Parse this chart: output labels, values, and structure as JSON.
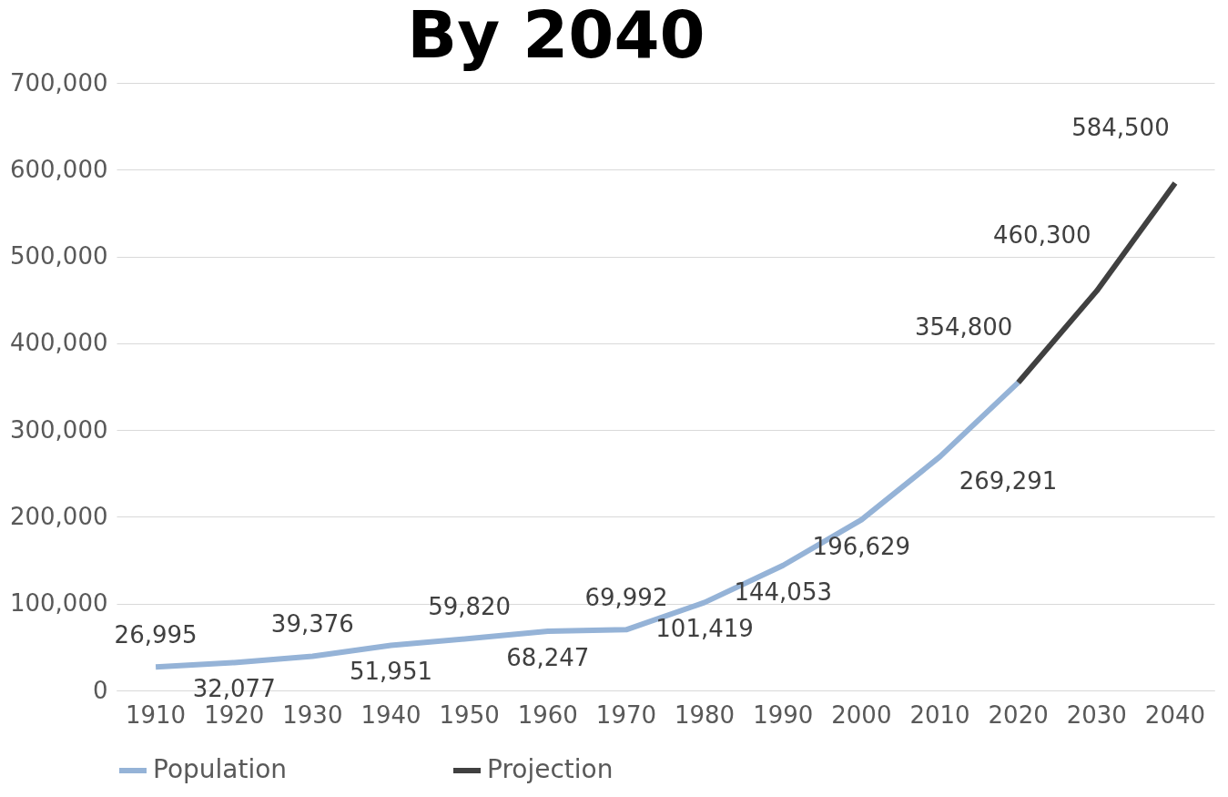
{
  "chart_data": {
    "type": "line",
    "title": "By 2040",
    "categories": [
      "1910",
      "1920",
      "1930",
      "1940",
      "1950",
      "1960",
      "1970",
      "1980",
      "1990",
      "2000",
      "2010",
      "2020",
      "2030",
      "2040"
    ],
    "series": [
      {
        "name": "Population",
        "color": "#95b3d7",
        "values": [
          26995,
          32077,
          39376,
          51951,
          59820,
          68247,
          69992,
          101419,
          144053,
          196629,
          269291,
          354800,
          null,
          null
        ],
        "value_labels": [
          "26,995",
          "32,077",
          "39,376",
          "51,951",
          "59,820",
          "68,247",
          "69,992",
          "101,419",
          "144,053",
          "196,629",
          "269,291",
          "354,800",
          null,
          null
        ]
      },
      {
        "name": "Projection",
        "color": "#404040",
        "values": [
          null,
          null,
          null,
          null,
          null,
          null,
          null,
          null,
          null,
          null,
          null,
          354800,
          460300,
          584500
        ],
        "value_labels": [
          null,
          null,
          null,
          null,
          null,
          null,
          null,
          null,
          null,
          null,
          null,
          null,
          "460,300",
          "584,500"
        ]
      }
    ],
    "ylim": [
      0,
      700000
    ],
    "yticks": [
      {
        "value": 0,
        "label": "0"
      },
      {
        "value": 100000,
        "label": "100,000"
      },
      {
        "value": 200000,
        "label": "200,000"
      },
      {
        "value": 300000,
        "label": "300,000"
      },
      {
        "value": 400000,
        "label": "400,000"
      },
      {
        "value": 500000,
        "label": "500,000"
      },
      {
        "value": 600000,
        "label": "600,000"
      },
      {
        "value": 700000,
        "label": "700,000"
      }
    ],
    "grid": "y",
    "legend": "bottom",
    "marker": "none",
    "line_style": "solid"
  }
}
